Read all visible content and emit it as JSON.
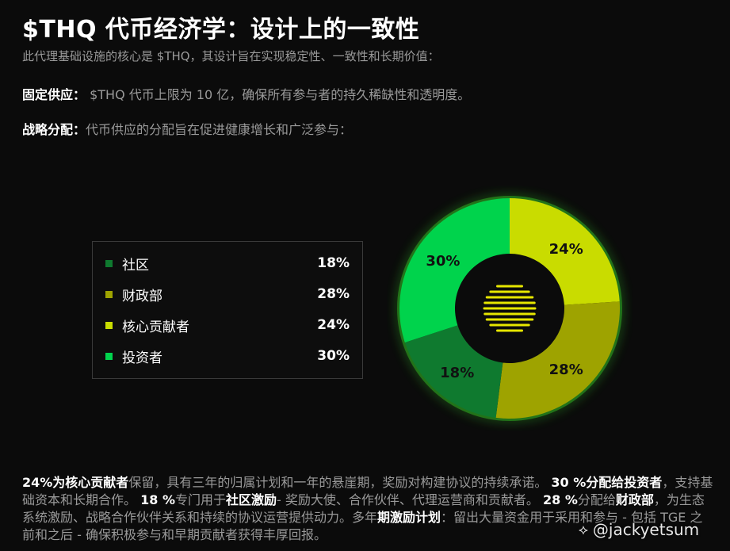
{
  "header": {
    "title": "$THQ 代币经济学：设计上的一致性",
    "subtitle": "此代理基础设施的核心是 $THQ，其设计旨在实现稳定性、一致性和长期价值："
  },
  "fixed_supply": {
    "lead": "固定供应：",
    "text": " $THQ 代币上限为 10 亿，确保所有参与者的持久稀缺性和透明度。"
  },
  "strategic_allocation": {
    "lead": "战略分配：",
    "text": "代币供应的分配旨在促进健康增长和广泛参与："
  },
  "chart_data": {
    "type": "pie",
    "categories": [
      "社区",
      "财政部",
      "核心贡献者",
      "投资者"
    ],
    "values": [
      18,
      28,
      24,
      30
    ],
    "labels": [
      "18%",
      "28%",
      "24%",
      "30%"
    ],
    "colors": [
      "#0f7a2f",
      "#9ea300",
      "#c9dc00",
      "#00d34c"
    ],
    "legend_position": "left"
  },
  "bottom": {
    "p1_pct": "24%",
    "p1_subject": "为核心贡献者",
    "p1_text": "保留，具有三年的归属计划和一年的悬崖期，奖励对构建协议的持续承诺。",
    "p2_pct": "30 %",
    "p2_subject": "分配给投资者",
    "p2_text": "，支持基础资本和长期合作。",
    "p3_pct": "18 %",
    "p3_text_a": "专门用于",
    "p3_subject": "社区激励",
    "p3_text_b": "- 奖励大使、合作伙伴、代理运营商和贡献者。",
    "p4_pct": "28 %",
    "p4_text_a": "分配给",
    "p4_subject": "财政部",
    "p4_text_b": "，为生态系统激励、战略合作伙伴关系和持续的协议运营提供动力。多年",
    "p5_subject": "期激励计划",
    "p5_text": "：留出大量资金用于采用和参与 - 包括 TGE 之前和之后 - 确保积极参与和早期贡献者获得丰厚回报。"
  },
  "watermark": {
    "mark": "⟡",
    "handle": "@jackyetsum"
  }
}
